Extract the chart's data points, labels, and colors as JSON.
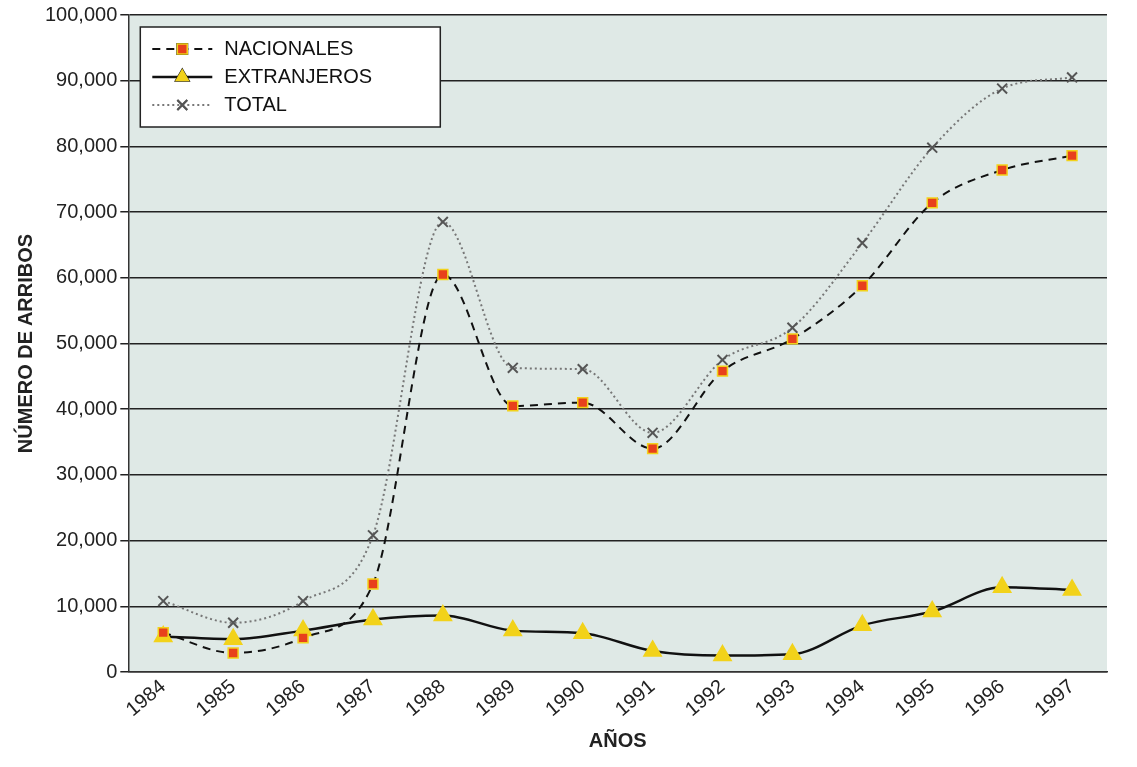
{
  "chart_data": {
    "type": "line",
    "xlabel": "AÑOS",
    "ylabel": "NÚMERO DE ARRIBOS",
    "categories": [
      "1984",
      "1985",
      "1986",
      "1987",
      "1988",
      "1989",
      "1990",
      "1991",
      "1992",
      "1993",
      "1994",
      "1995",
      "1996",
      "1997"
    ],
    "series": [
      {
        "name": "NACIONALES",
        "color": "#e8401c",
        "marker": "square",
        "line_style": "dashed",
        "values": [
          6000,
          2900,
          5200,
          13400,
          60500,
          40500,
          41000,
          34000,
          45800,
          50700,
          58800,
          71400,
          76400,
          78600
        ]
      },
      {
        "name": "EXTRANJEROS",
        "color": "#f2d21a",
        "marker": "triangle",
        "line_style": "solid",
        "values": [
          5400,
          5000,
          6300,
          8000,
          8600,
          6300,
          5900,
          3200,
          2500,
          2700,
          7100,
          9200,
          12900,
          12500
        ]
      },
      {
        "name": "TOTAL",
        "color": "#555555",
        "marker": "cross",
        "line_style": "dotted",
        "values": [
          10800,
          7500,
          10800,
          20800,
          68500,
          46300,
          46100,
          36400,
          47500,
          52400,
          65300,
          79800,
          88800,
          90500
        ]
      }
    ],
    "ylim": [
      0,
      100000
    ],
    "yticks": [
      {
        "value": 0,
        "label": "0"
      },
      {
        "value": 10000,
        "label": "10,000"
      },
      {
        "value": 20000,
        "label": "20,000"
      },
      {
        "value": 30000,
        "label": "30,000"
      },
      {
        "value": 40000,
        "label": "40,000"
      },
      {
        "value": 50000,
        "label": "50,000"
      },
      {
        "value": 60000,
        "label": "60,000"
      },
      {
        "value": 70000,
        "label": "70,000"
      },
      {
        "value": 80000,
        "label": "80,000"
      },
      {
        "value": 90000,
        "label": "90,000"
      },
      {
        "value": 100000,
        "label": "100,000"
      }
    ],
    "grid": "y",
    "legend": "top left"
  }
}
